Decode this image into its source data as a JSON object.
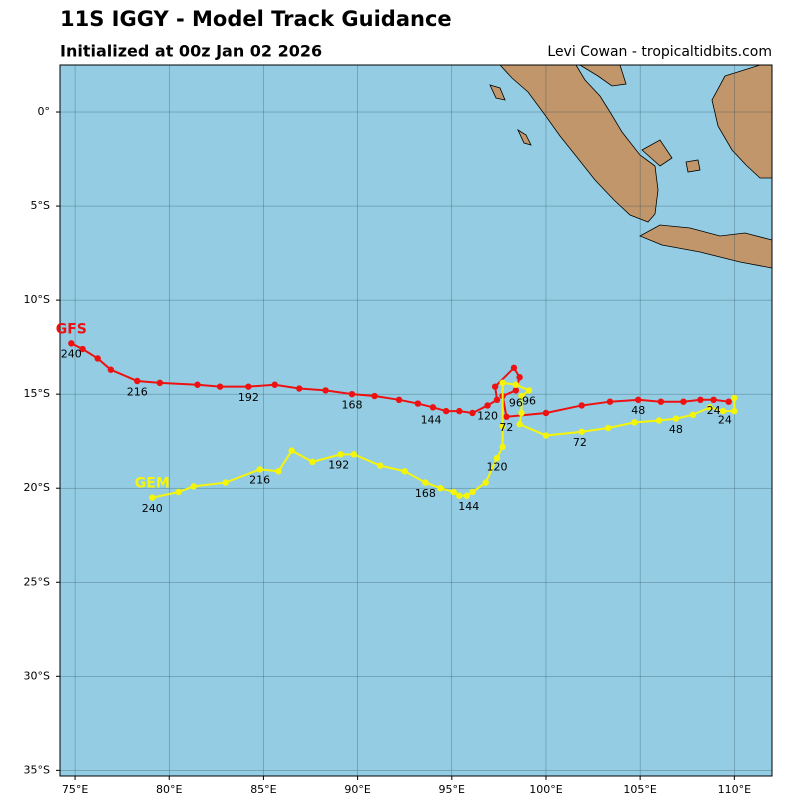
{
  "chart_data": {
    "type": "track",
    "title": "11S IGGY - Model Track Guidance",
    "subtitle": "Initialized at 00z Jan 02 2026",
    "credit": "Levi Cowan - tropicaltidbits.com",
    "xlim": [
      74.2,
      112.0
    ],
    "ylim": [
      -35.3,
      2.5
    ],
    "xticks": [
      {
        "value": 75,
        "label": "75°E"
      },
      {
        "value": 80,
        "label": "80°E"
      },
      {
        "value": 85,
        "label": "85°E"
      },
      {
        "value": 90,
        "label": "90°E"
      },
      {
        "value": 95,
        "label": "95°E"
      },
      {
        "value": 100,
        "label": "100°E"
      },
      {
        "value": 105,
        "label": "105°E"
      },
      {
        "value": 110,
        "label": "110°E"
      }
    ],
    "yticks": [
      {
        "value": 0,
        "label": "0°"
      },
      {
        "value": -5,
        "label": "5°S"
      },
      {
        "value": -10,
        "label": "10°S"
      },
      {
        "value": -15,
        "label": "15°S"
      },
      {
        "value": -20,
        "label": "20°S"
      },
      {
        "value": -25,
        "label": "25°S"
      },
      {
        "value": -30,
        "label": "30°S"
      },
      {
        "value": -35,
        "label": "35°S"
      }
    ],
    "grid": true,
    "series": [
      {
        "name": "GFS",
        "color": "#ee1111",
        "x": [
          109.7,
          108.9,
          108.2,
          107.3,
          106.1,
          104.9,
          103.4,
          101.9,
          100.0,
          97.9,
          97.7,
          98.4,
          98.6,
          98.3,
          97.3,
          97.4,
          96.9,
          96.1,
          95.4,
          94.7,
          94.0,
          93.2,
          92.2,
          90.9,
          89.7,
          88.3,
          86.9,
          85.6,
          84.2,
          82.7,
          81.5,
          79.5,
          78.3,
          76.9,
          76.2,
          75.4,
          74.8
        ],
        "values": [
          -15.4,
          -15.3,
          -15.3,
          -15.4,
          -15.4,
          -15.3,
          -15.4,
          -15.6,
          -16.0,
          -16.2,
          -15.1,
          -14.8,
          -14.1,
          -13.6,
          -14.6,
          -15.3,
          -15.6,
          -16.0,
          -15.9,
          -15.9,
          -15.7,
          -15.5,
          -15.3,
          -15.1,
          -15.0,
          -14.8,
          -14.7,
          -14.5,
          -14.6,
          -14.6,
          -14.5,
          -14.4,
          -14.3,
          -13.7,
          -13.1,
          -12.6,
          -12.3
        ]
      },
      {
        "name": "GEM",
        "color": "#f5f50a",
        "x": [
          110.0,
          110.0,
          109.4,
          108.7,
          107.8,
          106.9,
          106.0,
          104.7,
          103.3,
          101.9,
          100.0,
          98.6,
          98.7,
          98.7,
          99.1,
          98.4,
          97.7,
          97.7,
          97.7,
          97.4,
          96.8,
          96.1,
          95.8,
          95.4,
          95.1,
          94.4,
          93.6,
          92.5,
          91.2,
          89.8,
          89.1,
          87.6,
          86.5,
          85.8,
          84.8,
          83.0,
          81.3,
          80.5,
          79.1
        ],
        "values": [
          -15.2,
          -15.9,
          -15.9,
          -15.7,
          -16.1,
          -16.3,
          -16.4,
          -16.5,
          -16.8,
          -17.0,
          -17.2,
          -16.6,
          -16.0,
          -15.1,
          -14.8,
          -14.5,
          -14.4,
          -16.7,
          -17.8,
          -18.4,
          -19.7,
          -20.2,
          -20.4,
          -20.4,
          -20.2,
          -20.0,
          -19.7,
          -19.1,
          -18.8,
          -18.2,
          -18.2,
          -18.6,
          -18.0,
          -19.1,
          -19.0,
          -19.7,
          -19.9,
          -20.2,
          -20.5
        ]
      }
    ],
    "annotations": [
      {
        "text": "24",
        "x": 108.9,
        "y": -15.9
      },
      {
        "text": "48",
        "x": 104.9,
        "y": -15.9
      },
      {
        "text": "72",
        "x": 97.9,
        "y": -16.8
      },
      {
        "text": "96",
        "x": 98.4,
        "y": -15.5
      },
      {
        "text": "120",
        "x": 96.9,
        "y": -16.2
      },
      {
        "text": "144",
        "x": 93.9,
        "y": -16.4
      },
      {
        "text": "168",
        "x": 89.7,
        "y": -15.6
      },
      {
        "text": "192",
        "x": 84.2,
        "y": -15.2
      },
      {
        "text": "216",
        "x": 78.3,
        "y": -14.9
      },
      {
        "text": "240",
        "x": 74.8,
        "y": -12.9
      },
      {
        "text": "24",
        "x": 109.5,
        "y": -16.4
      },
      {
        "text": "48",
        "x": 106.9,
        "y": -16.9
      },
      {
        "text": "72",
        "x": 101.8,
        "y": -17.6
      },
      {
        "text": "96",
        "x": 99.1,
        "y": -15.4
      },
      {
        "text": "120",
        "x": 97.4,
        "y": -18.9
      },
      {
        "text": "144",
        "x": 95.9,
        "y": -21.0
      },
      {
        "text": "168",
        "x": 93.6,
        "y": -20.3
      },
      {
        "text": "192",
        "x": 89.0,
        "y": -18.8
      },
      {
        "text": "216",
        "x": 84.8,
        "y": -19.6
      },
      {
        "text": "240",
        "x": 79.1,
        "y": -21.1
      }
    ]
  }
}
